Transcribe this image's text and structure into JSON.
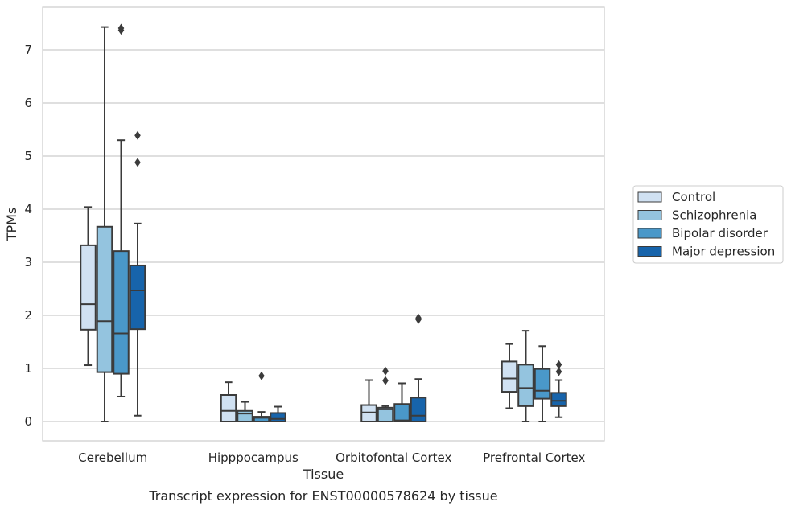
{
  "chart_data": {
    "type": "box",
    "title": "Transcript expression for ENST00000578624 by tissue",
    "xlabel": "Tissue",
    "ylabel": "TPMs",
    "ylim": [
      -0.36,
      7.8
    ],
    "yticks": [
      0,
      1,
      2,
      3,
      4,
      5,
      6,
      7
    ],
    "grid": "horizontal",
    "legend_position": "right",
    "categories": [
      "Cerebellum",
      "Hipppocampus",
      "Orbitofontal Cortex",
      "Prefrontal Cortex"
    ],
    "series": [
      {
        "name": "Control",
        "color": "#d0e1f2",
        "boxes": [
          {
            "whislo": 1.06,
            "q1": 1.73,
            "med": 2.21,
            "q3": 3.32,
            "whishi": 4.04,
            "fliers": []
          },
          {
            "whislo": 0.0,
            "q1": 0.0,
            "med": 0.2,
            "q3": 0.5,
            "whishi": 0.74,
            "fliers": []
          },
          {
            "whislo": 0.0,
            "q1": 0.0,
            "med": 0.17,
            "q3": 0.31,
            "whishi": 0.78,
            "fliers": []
          },
          {
            "whislo": 0.25,
            "q1": 0.56,
            "med": 0.81,
            "q3": 1.13,
            "whishi": 1.46,
            "fliers": []
          }
        ]
      },
      {
        "name": "Schizophrenia",
        "color": "#94c4df",
        "boxes": [
          {
            "whislo": 0.0,
            "q1": 0.93,
            "med": 1.89,
            "q3": 3.67,
            "whishi": 7.43,
            "fliers": []
          },
          {
            "whislo": 0.0,
            "q1": 0.0,
            "med": 0.15,
            "q3": 0.2,
            "whishi": 0.37,
            "fliers": []
          },
          {
            "whislo": 0.0,
            "q1": 0.0,
            "med": 0.23,
            "q3": 0.26,
            "whishi": 0.29,
            "fliers": [
              0.77,
              0.95
            ]
          },
          {
            "whislo": 0.0,
            "q1": 0.29,
            "med": 0.63,
            "q3": 1.07,
            "whishi": 1.71,
            "fliers": []
          }
        ]
      },
      {
        "name": "Bipolar disorder",
        "color": "#4a98c9",
        "boxes": [
          {
            "whislo": 0.47,
            "q1": 0.9,
            "med": 1.66,
            "q3": 3.21,
            "whishi": 5.3,
            "fliers": [
              7.37,
              7.41
            ]
          },
          {
            "whislo": 0.0,
            "q1": 0.0,
            "med": 0.07,
            "q3": 0.09,
            "whishi": 0.18,
            "fliers": [
              0.86
            ]
          },
          {
            "whislo": 0.0,
            "q1": 0.0,
            "med": 0.02,
            "q3": 0.33,
            "whishi": 0.72,
            "fliers": []
          },
          {
            "whislo": 0.0,
            "q1": 0.43,
            "med": 0.58,
            "q3": 0.99,
            "whishi": 1.42,
            "fliers": []
          }
        ]
      },
      {
        "name": "Major depression",
        "color": "#1764ab",
        "boxes": [
          {
            "whislo": 0.11,
            "q1": 1.74,
            "med": 2.47,
            "q3": 2.94,
            "whishi": 3.73,
            "fliers": [
              4.88,
              5.39
            ]
          },
          {
            "whislo": 0.0,
            "q1": 0.0,
            "med": 0.05,
            "q3": 0.16,
            "whishi": 0.28,
            "fliers": []
          },
          {
            "whislo": 0.0,
            "q1": 0.0,
            "med": 0.11,
            "q3": 0.45,
            "whishi": 0.8,
            "fliers": [
              1.92,
              1.95
            ]
          },
          {
            "whislo": 0.08,
            "q1": 0.29,
            "med": 0.39,
            "q3": 0.54,
            "whishi": 0.78,
            "fliers": [
              0.94,
              1.07
            ]
          }
        ]
      }
    ]
  }
}
